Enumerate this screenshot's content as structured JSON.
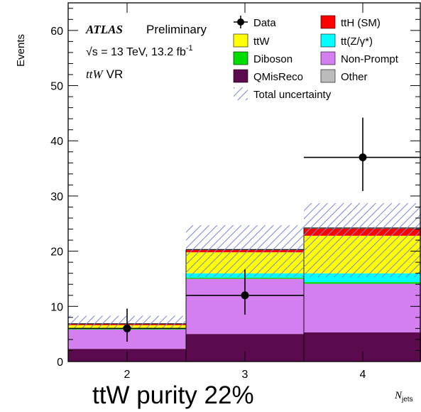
{
  "chart_data": {
    "type": "bar",
    "stacked": true,
    "title": "",
    "xlabel": "N_jets",
    "ylabel": "Events",
    "ylim": [
      0,
      65
    ],
    "y_ticks": [
      0,
      10,
      20,
      30,
      40,
      50,
      60
    ],
    "categories": [
      "2",
      "3",
      "4"
    ],
    "series": [
      {
        "name": "QMisReco",
        "color": "#5c0a4e",
        "values": [
          2.3,
          5.0,
          5.3
        ]
      },
      {
        "name": "Non-Prompt",
        "color": "#d47ff0",
        "values": [
          3.5,
          10.0,
          8.8
        ]
      },
      {
        "name": "Diboson",
        "color": "#00dd00",
        "values": [
          0.1,
          0.2,
          0.3
        ]
      },
      {
        "name": "tt(Z/γ*)",
        "color": "#00ffff",
        "values": [
          0.1,
          0.8,
          1.6
        ]
      },
      {
        "name": "ttW",
        "color": "#ffff00",
        "values": [
          0.6,
          3.8,
          6.8
        ]
      },
      {
        "name": "ttH (SM)",
        "color": "#ff0000",
        "values": [
          0.2,
          0.4,
          1.3
        ]
      },
      {
        "name": "Other",
        "color": "#bbbbbb",
        "values": [
          0.05,
          0.1,
          0.1
        ]
      }
    ],
    "uncertainty": {
      "name": "Total uncertainty",
      "low": [
        5.8,
        15.3,
        15.3
      ],
      "high": [
        8.3,
        24.7,
        28.7
      ]
    },
    "data": {
      "name": "Data",
      "values": [
        6,
        12,
        37
      ],
      "err_low": [
        2.4,
        3.5,
        6.1
      ],
      "err_high": [
        3.6,
        4.7,
        7.2
      ]
    },
    "legend_placement": "top-right",
    "grid": false
  },
  "annotations": {
    "atlas": "ATLAS",
    "preliminary": "Preliminary",
    "energy_prefix": "√s = 13 TeV, 13.2 fb",
    "energy_exp": "-1",
    "region_name": "ttW",
    "region_suffix": "VR"
  },
  "xlabel_main": "N",
  "xlabel_sub": "jets",
  "caption": "ttW purity 22%"
}
